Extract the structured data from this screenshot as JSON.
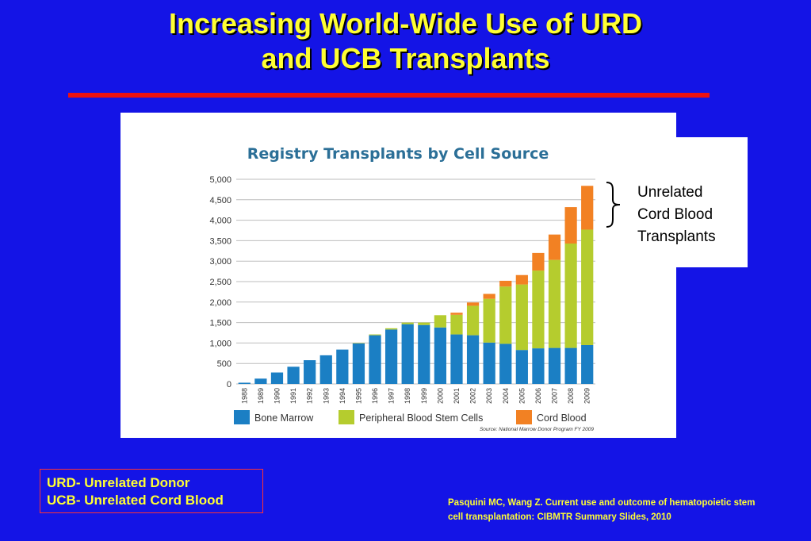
{
  "slide": {
    "title_line1": "Increasing World-Wide Use of URD",
    "title_line2": "and UCB Transplants",
    "callout_line1": "Unrelated",
    "callout_line2": "Cord Blood",
    "callout_line3": "Transplants",
    "abbr_line1": "URD- Unrelated Donor",
    "abbr_line2": "UCB- Unrelated Cord Blood",
    "citation_line1": "Pasquini MC, Wang Z. Current use and outcome of hematopoietic stem",
    "citation_line2": "cell transplantation: CIBMTR Summary Slides, 2010",
    "colors": {
      "background": "#1414e6",
      "title": "#ffff33",
      "rule": "#ee1111"
    }
  },
  "chart_data": {
    "type": "bar",
    "stacked": true,
    "title": "Registry Transplants by Cell Source",
    "source": "Source: National Marrow Donor Program FY 2009",
    "categories": [
      "1988",
      "1989",
      "1990",
      "1991",
      "1992",
      "1993",
      "1994",
      "1995",
      "1996",
      "1997",
      "1998",
      "1999",
      "2000",
      "2001",
      "2002",
      "2003",
      "2004",
      "2005",
      "2006",
      "2007",
      "2008",
      "2009"
    ],
    "ylim": [
      0,
      5000
    ],
    "yticks": [
      0,
      500,
      1000,
      1500,
      2000,
      2500,
      3000,
      3500,
      4000,
      4500,
      5000
    ],
    "ytick_labels": [
      "0",
      "500",
      "1,000",
      "1,500",
      "2,000",
      "2,500",
      "3,000",
      "3,500",
      "4,000",
      "4,500",
      "5,000"
    ],
    "grid": true,
    "legend_position": "bottom",
    "series": [
      {
        "name": "Bone Marrow",
        "color": "#1b7fc4",
        "values": [
          30,
          130,
          280,
          420,
          580,
          700,
          840,
          990,
          1190,
          1330,
          1460,
          1440,
          1380,
          1210,
          1190,
          1010,
          980,
          830,
          870,
          880,
          880,
          950
        ]
      },
      {
        "name": "Peripheral Blood Stem Cells",
        "color": "#b5cc2e",
        "values": [
          0,
          0,
          0,
          0,
          0,
          0,
          0,
          10,
          20,
          30,
          40,
          60,
          300,
          480,
          720,
          1070,
          1400,
          1600,
          1900,
          2150,
          2550,
          2820
        ]
      },
      {
        "name": "Cord Blood",
        "color": "#f28123",
        "values": [
          0,
          0,
          0,
          0,
          0,
          0,
          0,
          0,
          0,
          0,
          0,
          0,
          0,
          50,
          80,
          120,
          140,
          230,
          430,
          620,
          890,
          1070
        ]
      }
    ]
  }
}
